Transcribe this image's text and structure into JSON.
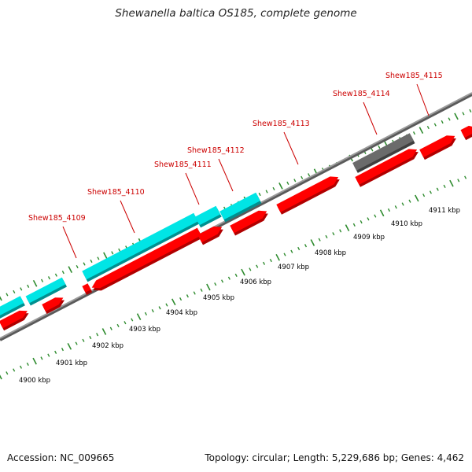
{
  "title": "Shewanella baltica OS185, complete genome",
  "footer": {
    "accession": "Accession: NC_009665",
    "summary": "Topology: circular; Length: 5,229,686 bp; Genes: 4,462"
  },
  "colors": {
    "cds": "#ff0000",
    "cds_shade": "#b00000",
    "other_cds": "#00e5e5",
    "other_shade": "#008f8f",
    "misc": "#6b6b6b",
    "backbone": "#8a8a8a",
    "tick": "#2e8b2e",
    "label": "#cc0000"
  },
  "gene_labels": [
    "Shew185_4109",
    "Shew185_4110",
    "Shew185_4111",
    "Shew185_4112",
    "Shew185_4113",
    "Shew185_4114",
    "Shew185_4115"
  ],
  "kbp_labels": [
    "4900 kbp",
    "4901 kbp",
    "4902 kbp",
    "4903 kbp",
    "4904 kbp",
    "4905 kbp",
    "4906 kbp",
    "4907 kbp",
    "4908 kbp",
    "4909 kbp",
    "4910 kbp",
    "4911 kbp"
  ]
}
